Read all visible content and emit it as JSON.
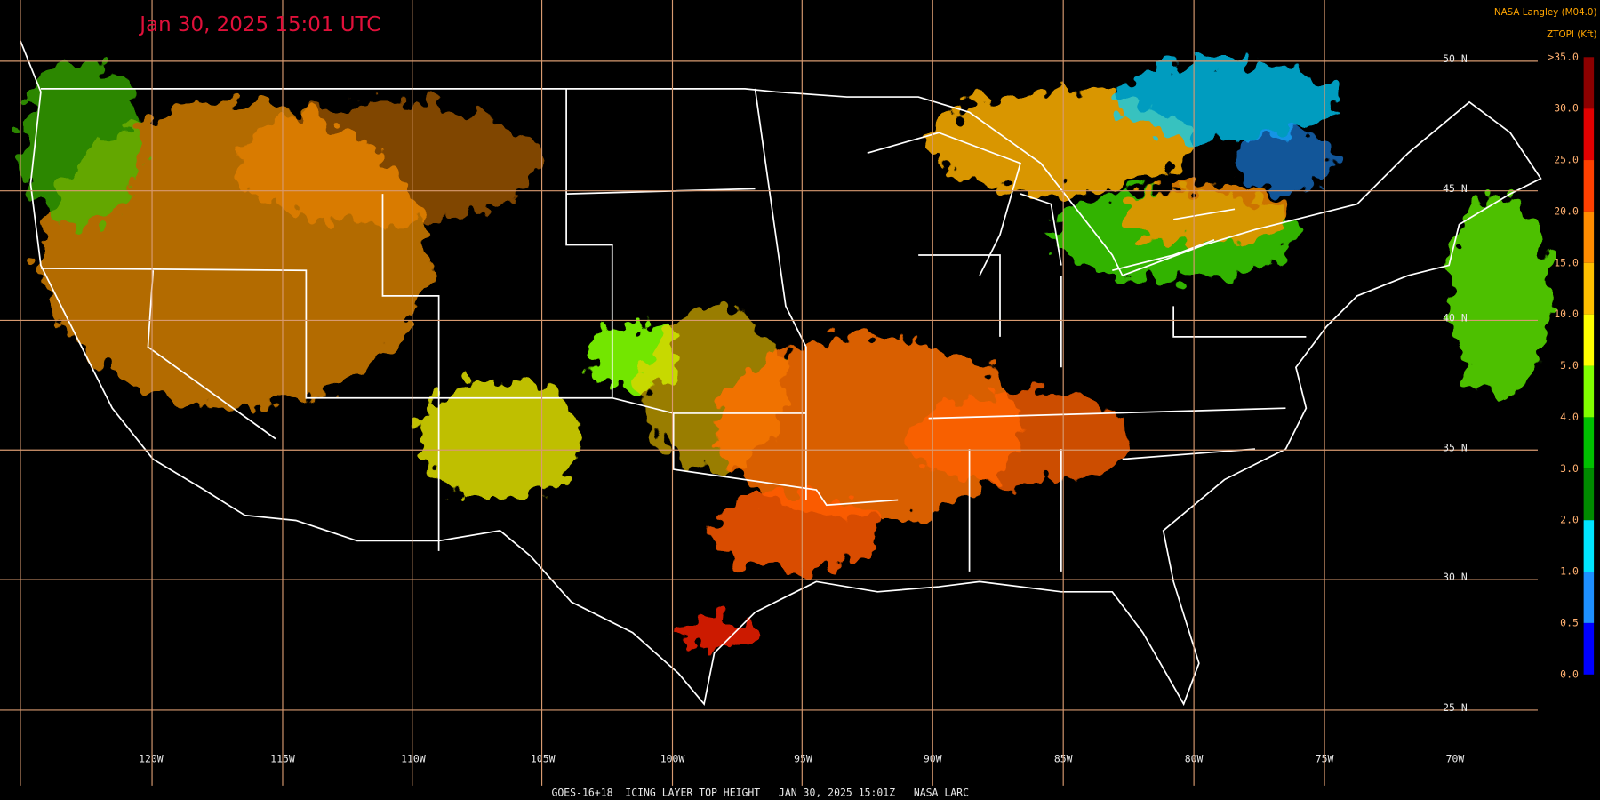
{
  "header": {
    "timestamp": "Jan 30, 2025 15:01 UTC",
    "source": "NASA Langley (M04.0)",
    "product": "ZTOPI (Kft)"
  },
  "latitude_labels": [
    "50 N",
    "45 N",
    "40 N",
    "35 N",
    "30 N",
    "25 N"
  ],
  "longitude_labels": [
    "120W",
    "115W",
    "110W",
    "105W",
    "100W",
    "95W",
    "90W",
    "85W",
    "80W",
    "75W",
    "70W"
  ],
  "colorbar": {
    "labels": [
      ">35.0",
      "30.0",
      "25.0",
      "20.0",
      "15.0",
      "10.0",
      "5.0",
      "4.0",
      "3.0",
      "2.0",
      "1.0",
      "0.5",
      "0.0"
    ],
    "colors": [
      "#8b0000",
      "#e00000",
      "#ff4000",
      "#ff8c00",
      "#ffc000",
      "#ffff00",
      "#80ff00",
      "#00c000",
      "#008a00",
      "#00e5ff",
      "#1e90ff",
      "#0000ff",
      "#a050ff"
    ]
  },
  "footer": "GOES-16+18  ICING LAYER TOP HEIGHT   JAN 30, 2025 15:01Z   NASA LARC"
}
